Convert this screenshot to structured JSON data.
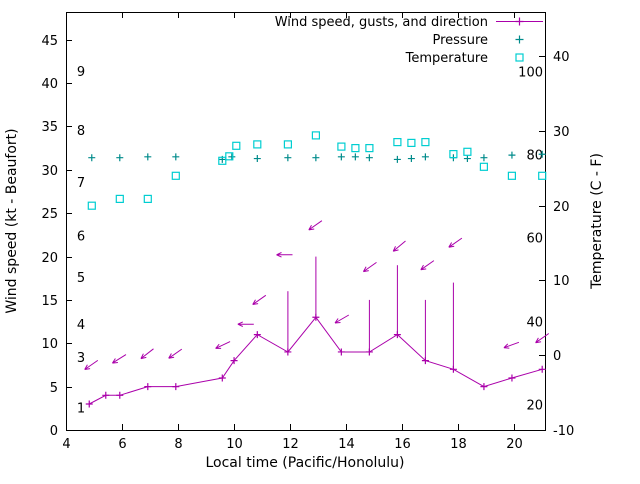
{
  "chart_data": {
    "type": "line",
    "title": "",
    "xlabel": "Local time (Pacific/Honolulu)",
    "ylabel_left": "Wind speed (kt - Beaufort)",
    "ylabel_right": "Temperature (C - F)",
    "xlim": [
      4,
      21.1
    ],
    "ylim_left": [
      0,
      48.2
    ],
    "ylim_right": [
      -10,
      45.9
    ],
    "x_ticks": [
      4,
      6,
      8,
      10,
      12,
      14,
      16,
      18,
      20
    ],
    "y_ticks_left": [
      0,
      5,
      10,
      15,
      20,
      25,
      30,
      35,
      40,
      45
    ],
    "y_ticks_right": [
      -10,
      0,
      10,
      20,
      30,
      40
    ],
    "grid": false,
    "legend_position": "top-right-inside",
    "colors": {
      "wind": "#aa00aa",
      "pressure": "#008b8b",
      "temperature": "#00ced1",
      "axis": "#000000"
    },
    "legend": [
      {
        "label": "Wind speed, gusts, and direction",
        "series": "wind"
      },
      {
        "label": "Pressure",
        "series": "pressure"
      },
      {
        "label": "Temperature",
        "series": "temperature"
      }
    ],
    "beaufort_labels": [
      {
        "label": "1",
        "kt": 2.5
      },
      {
        "label": "3",
        "kt": 8.3
      },
      {
        "label": "4",
        "kt": 12.1
      },
      {
        "label": "5",
        "kt": 17.5
      },
      {
        "label": "6",
        "kt": 22.3
      },
      {
        "label": "7",
        "kt": 28.5
      },
      {
        "label": "8",
        "kt": 34.5
      },
      {
        "label": "9",
        "kt": 41.3
      }
    ],
    "fahrenheit_labels": [
      {
        "label": "20",
        "c": -6.7
      },
      {
        "label": "40",
        "c": 4.4
      },
      {
        "label": "60",
        "c": 15.6
      },
      {
        "label": "80",
        "c": 26.7
      },
      {
        "label": "100",
        "c": 37.8
      }
    ],
    "series": {
      "wind_speed": {
        "axis": "left",
        "t": [
          4.83,
          5.42,
          5.92,
          6.92,
          7.92,
          9.58,
          10.0,
          10.83,
          11.92,
          12.92,
          13.83,
          14.83,
          15.83,
          16.83,
          17.83,
          18.92,
          19.92,
          21.0
        ],
        "kt": [
          3,
          4,
          4,
          5,
          5,
          6,
          8,
          11,
          9,
          13,
          9,
          9,
          11,
          8,
          7,
          5,
          6,
          7
        ]
      },
      "wind_gusts": [
        {
          "t": 11.92,
          "from": 9,
          "to": 16
        },
        {
          "t": 12.92,
          "from": 13,
          "to": 20
        },
        {
          "t": 14.83,
          "from": 9,
          "to": 15
        },
        {
          "t": 15.83,
          "from": 11,
          "to": 19
        },
        {
          "t": 16.83,
          "from": 8,
          "to": 15
        },
        {
          "t": 17.83,
          "from": 7,
          "to": 17
        }
      ],
      "wind_direction": [
        {
          "t": 4.9,
          "kt": 7.5,
          "angle": 215
        },
        {
          "t": 5.9,
          "kt": 8.2,
          "angle": 212
        },
        {
          "t": 6.9,
          "kt": 8.8,
          "angle": 218
        },
        {
          "t": 7.9,
          "kt": 8.8,
          "angle": 215
        },
        {
          "t": 9.6,
          "kt": 9.8,
          "angle": 205
        },
        {
          "t": 10.42,
          "kt": 12.2,
          "angle": 180
        },
        {
          "t": 10.9,
          "kt": 15.0,
          "angle": 215
        },
        {
          "t": 11.8,
          "kt": 20.2,
          "angle": 180
        },
        {
          "t": 12.9,
          "kt": 23.6,
          "angle": 215
        },
        {
          "t": 13.85,
          "kt": 12.8,
          "angle": 210
        },
        {
          "t": 14.85,
          "kt": 18.8,
          "angle": 215
        },
        {
          "t": 15.9,
          "kt": 21.2,
          "angle": 220
        },
        {
          "t": 16.9,
          "kt": 19.0,
          "angle": 215
        },
        {
          "t": 17.9,
          "kt": 21.6,
          "angle": 215
        },
        {
          "t": 19.9,
          "kt": 9.8,
          "angle": 200
        },
        {
          "t": 21.0,
          "kt": 10.6,
          "angle": 215
        }
      ],
      "pressure": {
        "axis": "left",
        "t": [
          4.92,
          5.92,
          6.92,
          7.92,
          9.58,
          9.92,
          10.83,
          11.92,
          12.92,
          13.83,
          14.33,
          14.83,
          15.83,
          16.33,
          16.83,
          17.83,
          18.33,
          18.92,
          19.92,
          21.0
        ],
        "v": [
          31.4,
          31.4,
          31.5,
          31.5,
          31.2,
          31.5,
          31.3,
          31.4,
          31.4,
          31.5,
          31.5,
          31.4,
          31.2,
          31.3,
          31.5,
          31.4,
          31.3,
          31.4,
          31.7,
          31.8
        ]
      },
      "temperature": {
        "axis": "right",
        "t": [
          4.92,
          5.92,
          6.92,
          7.92,
          9.58,
          9.83,
          10.08,
          10.83,
          11.92,
          12.92,
          13.83,
          14.33,
          14.83,
          15.83,
          16.33,
          16.83,
          17.83,
          18.33,
          18.92,
          19.92,
          21.0
        ],
        "c": [
          20.0,
          20.9,
          20.9,
          24.0,
          26.0,
          26.6,
          28.0,
          28.2,
          28.2,
          29.4,
          27.9,
          27.7,
          27.7,
          28.5,
          28.4,
          28.5,
          26.9,
          27.2,
          25.2,
          24.0,
          24.0
        ]
      }
    }
  }
}
